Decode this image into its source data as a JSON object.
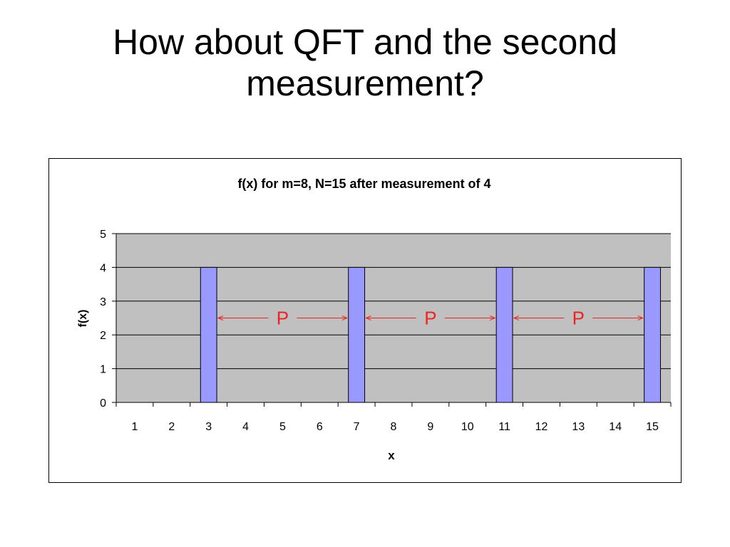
{
  "slide": {
    "title_line1": "How about QFT and the second",
    "title_line2": "measurement?"
  },
  "chart_data": {
    "type": "bar",
    "title": "f(x) for m=8, N=15 after measurement of 4",
    "xlabel": "x",
    "ylabel": "f(x)",
    "categories": [
      "1",
      "2",
      "3",
      "4",
      "5",
      "6",
      "7",
      "8",
      "9",
      "10",
      "11",
      "12",
      "13",
      "14",
      "15"
    ],
    "values": [
      0,
      0,
      4,
      0,
      0,
      0,
      4,
      0,
      0,
      0,
      4,
      0,
      0,
      0,
      4
    ],
    "ylim": [
      0,
      5
    ],
    "yticks": [
      0,
      1,
      2,
      3,
      4,
      5
    ],
    "grid": true,
    "legend": "none",
    "annotations": [
      {
        "label": "P",
        "from": "3",
        "to": "7",
        "y": 2.5
      },
      {
        "label": "P",
        "from": "7",
        "to": "11",
        "y": 2.5
      },
      {
        "label": "P",
        "from": "11",
        "to": "15",
        "y": 2.5
      }
    ],
    "colors": {
      "bar": "#9999ff",
      "plot_area": "#c0c0c0",
      "annotation": "#ee2222"
    }
  }
}
